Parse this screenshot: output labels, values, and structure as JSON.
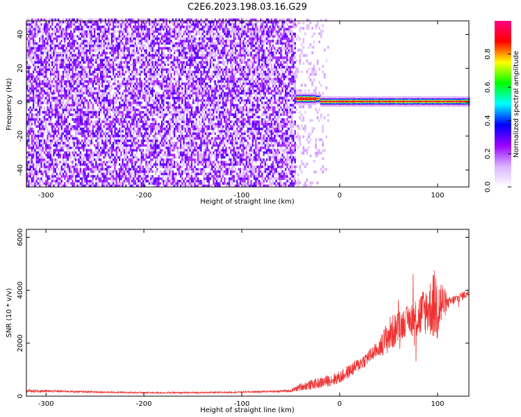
{
  "title": "C2E6.2023.198.03.16.G29",
  "chart_data": [
    {
      "type": "heatmap",
      "xlabel": "Height of straight line (km)",
      "ylabel": "Frequency (Hz)",
      "xlim": [
        -320,
        132
      ],
      "ylim": [
        -50,
        48
      ],
      "xticks": [
        -300,
        -200,
        -100,
        0,
        100
      ],
      "yticks": [
        -40,
        -20,
        0,
        20,
        40
      ],
      "colorbar": {
        "label": "Normalized spectral amplitude",
        "range": [
          0,
          1
        ],
        "ticks": [
          0.0,
          0.2,
          0.4,
          0.6,
          0.8
        ],
        "tick_labels": [
          "0.0",
          "0.2",
          "0.4",
          "0.6",
          "0.8"
        ],
        "colormap": [
          "#ffffff",
          "#d9b3ff",
          "#9900ff",
          "#0000ff",
          "#00ffff",
          "#00ff00",
          "#ffff00",
          "#ff0000",
          "#ff0080"
        ]
      },
      "regions": [
        {
          "name": "noise",
          "x_range": [
            -320,
            -45
          ],
          "freq_range": [
            -50,
            48
          ],
          "amplitude": 0.1
        },
        {
          "name": "sparse",
          "x_range": [
            -45,
            -12
          ],
          "freq_range": [
            -50,
            48
          ],
          "amplitude": 0.05
        },
        {
          "name": "carrier",
          "x_range": [
            -45,
            132
          ],
          "freq_range": [
            -2,
            4
          ],
          "peak_amplitude": 0.9
        }
      ],
      "grid": false
    },
    {
      "type": "line",
      "xlabel": "Height of straight line (km)",
      "ylabel": "SNR (10 * v/v)",
      "xlim": [
        -320,
        132
      ],
      "ylim": [
        0,
        6300
      ],
      "xticks": [
        -300,
        -200,
        -100,
        0,
        100
      ],
      "yticks": [
        0,
        2000,
        4000,
        6000
      ],
      "color": "#ee3333",
      "series": [
        {
          "x": [
            -320,
            -280,
            -240,
            -200,
            -160,
            -120,
            -80,
            -50,
            -40,
            -20,
            0,
            20,
            40,
            50,
            60,
            70,
            80,
            90,
            100,
            110,
            120,
            132
          ],
          "y": [
            200,
            180,
            150,
            130,
            130,
            140,
            170,
            200,
            350,
            500,
            700,
            1200,
            1800,
            2300,
            2600,
            2900,
            3000,
            3300,
            3500,
            3500,
            3700,
            3900
          ],
          "noise": [
            100,
            60,
            50,
            50,
            50,
            50,
            60,
            80,
            250,
            350,
            400,
            450,
            500,
            1200,
            1000,
            900,
            1500,
            1600,
            2600,
            350,
            300,
            250
          ]
        }
      ],
      "grid": false
    }
  ]
}
